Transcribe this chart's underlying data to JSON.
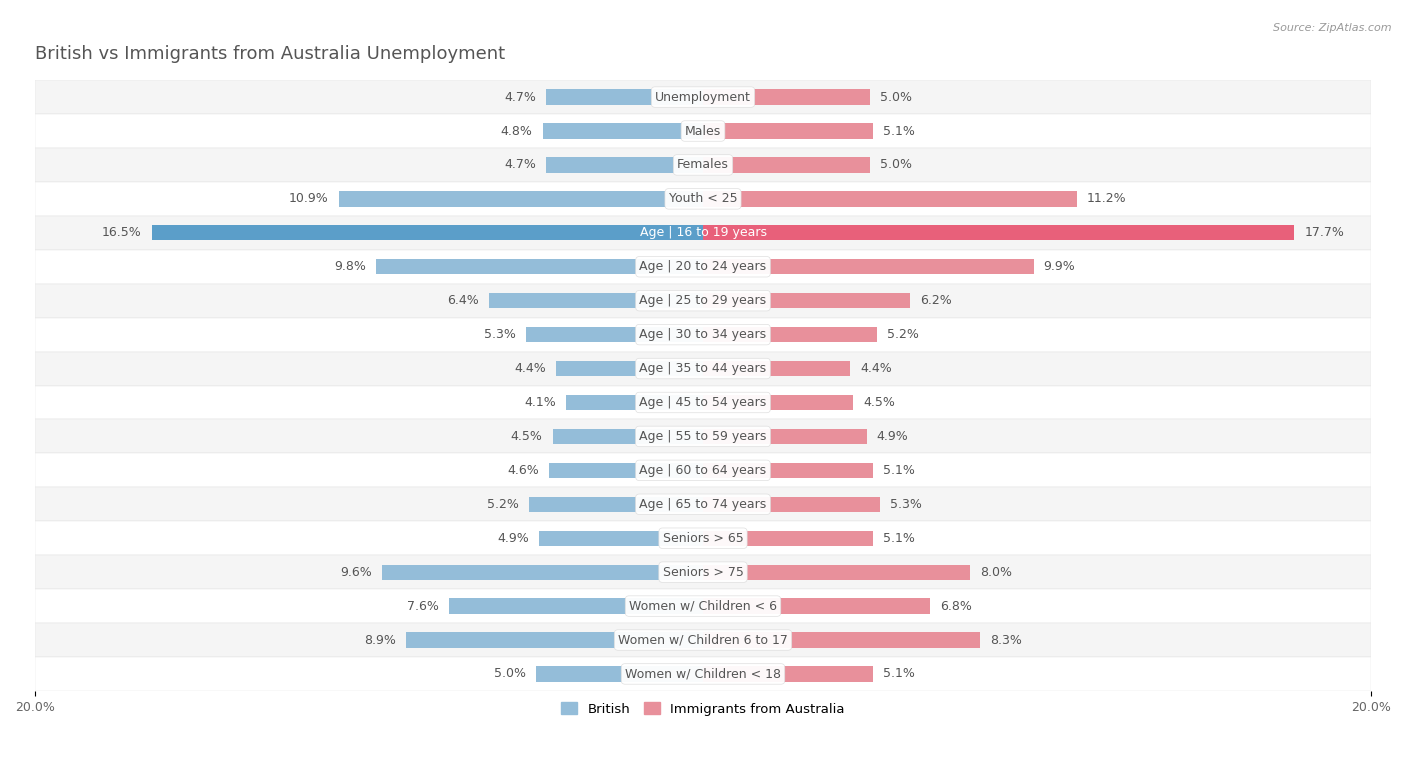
{
  "title": "British vs Immigrants from Australia Unemployment",
  "source": "Source: ZipAtlas.com",
  "categories": [
    "Unemployment",
    "Males",
    "Females",
    "Youth < 25",
    "Age | 16 to 19 years",
    "Age | 20 to 24 years",
    "Age | 25 to 29 years",
    "Age | 30 to 34 years",
    "Age | 35 to 44 years",
    "Age | 45 to 54 years",
    "Age | 55 to 59 years",
    "Age | 60 to 64 years",
    "Age | 65 to 74 years",
    "Seniors > 65",
    "Seniors > 75",
    "Women w/ Children < 6",
    "Women w/ Children 6 to 17",
    "Women w/ Children < 18"
  ],
  "british": [
    4.7,
    4.8,
    4.7,
    10.9,
    16.5,
    9.8,
    6.4,
    5.3,
    4.4,
    4.1,
    4.5,
    4.6,
    5.2,
    4.9,
    9.6,
    7.6,
    8.9,
    5.0
  ],
  "immigrants": [
    5.0,
    5.1,
    5.0,
    11.2,
    17.7,
    9.9,
    6.2,
    5.2,
    4.4,
    4.5,
    4.9,
    5.1,
    5.3,
    5.1,
    8.0,
    6.8,
    8.3,
    5.1
  ],
  "british_color": "#94bdd9",
  "immigrants_color": "#e8909b",
  "british_highlight_color": "#5b9ec9",
  "immigrants_highlight_color": "#e8607a",
  "bg_color": "#ffffff",
  "row_color_even": "#f5f5f5",
  "row_color_odd": "#ffffff",
  "row_border_color": "#e0e0e0",
  "max_val": 20.0,
  "bar_height": 0.45,
  "title_fontsize": 13,
  "label_fontsize": 9,
  "tick_fontsize": 9,
  "value_fontsize": 9,
  "title_color": "#555555",
  "label_color": "#555555",
  "value_color": "#555555",
  "source_color": "#999999",
  "legend_color_british": "#94bdd9",
  "legend_color_immigrants": "#e8909b"
}
